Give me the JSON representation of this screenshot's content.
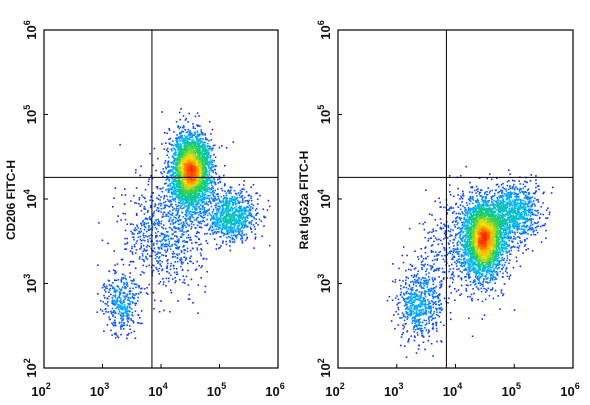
{
  "chart_data": [
    {
      "type": "scatter",
      "panel": "left",
      "ylabel": "CD206 FITC-H",
      "xlabel": "",
      "xscale": "log",
      "yscale": "log",
      "xlim": [
        100,
        1000000
      ],
      "ylim": [
        100,
        1000000
      ],
      "x_ticks": [
        {
          "base": "10",
          "exp": "2"
        },
        {
          "base": "10",
          "exp": "3"
        },
        {
          "base": "10",
          "exp": "4"
        },
        {
          "base": "10",
          "exp": "5"
        },
        {
          "base": "10",
          "exp": "6"
        }
      ],
      "y_ticks": [
        {
          "base": "10",
          "exp": "2"
        },
        {
          "base": "10",
          "exp": "3"
        },
        {
          "base": "10",
          "exp": "4"
        },
        {
          "base": "10",
          "exp": "5"
        },
        {
          "base": "10",
          "exp": "6"
        }
      ],
      "quadrant_gate": {
        "x": 7000,
        "y": 18000
      },
      "populations": [
        {
          "center": [
            32000,
            22000
          ],
          "spread": [
            0.17,
            0.22
          ],
          "fraction": 0.62
        },
        {
          "center": [
            2000,
            600
          ],
          "spread": [
            0.16,
            0.18
          ],
          "fraction": 0.07
        },
        {
          "center": [
            150000,
            6500
          ],
          "spread": [
            0.22,
            0.15
          ],
          "fraction": 0.16
        },
        {
          "center": [
            12000,
            4000
          ],
          "spread": [
            0.35,
            0.35
          ],
          "fraction": 0.15
        }
      ]
    },
    {
      "type": "scatter",
      "panel": "right",
      "ylabel": "Rat IgG2a FITC-H",
      "xlabel": "",
      "xscale": "log",
      "yscale": "log",
      "xlim": [
        100,
        1000000
      ],
      "ylim": [
        100,
        1000000
      ],
      "x_ticks": [
        {
          "base": "10",
          "exp": "2"
        },
        {
          "base": "10",
          "exp": "3"
        },
        {
          "base": "10",
          "exp": "4"
        },
        {
          "base": "10",
          "exp": "5"
        },
        {
          "base": "10",
          "exp": "6"
        }
      ],
      "y_ticks": [
        {
          "base": "10",
          "exp": "2"
        },
        {
          "base": "10",
          "exp": "3"
        },
        {
          "base": "10",
          "exp": "4"
        },
        {
          "base": "10",
          "exp": "5"
        },
        {
          "base": "10",
          "exp": "6"
        }
      ],
      "quadrant_gate": {
        "x": 7000,
        "y": 18000
      },
      "populations": [
        {
          "center": [
            30000,
            3500
          ],
          "spread": [
            0.17,
            0.22
          ],
          "fraction": 0.6
        },
        {
          "center": [
            2500,
            600
          ],
          "spread": [
            0.2,
            0.22
          ],
          "fraction": 0.12
        },
        {
          "center": [
            100000,
            7000
          ],
          "spread": [
            0.22,
            0.18
          ],
          "fraction": 0.16
        },
        {
          "center": [
            15000,
            3000
          ],
          "spread": [
            0.35,
            0.32
          ],
          "fraction": 0.12
        }
      ]
    }
  ],
  "colors": {
    "density_scale": [
      "#1a1aff",
      "#00b4ff",
      "#18d060",
      "#ffe000",
      "#ff2000"
    ],
    "gate_line": "#000000",
    "axis": "#000000"
  }
}
